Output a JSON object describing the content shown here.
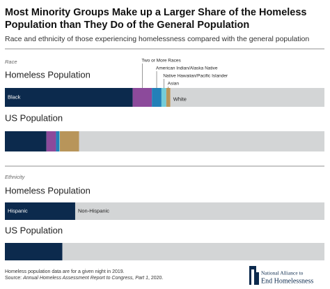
{
  "title_line1": "Most Minority Groups Make up a Larger Share of the Homeless",
  "title_line2": "Population than They Do of the General Population",
  "subtitle": "Race and ethnicity of those experiencing homelessness compared with the general population",
  "note": "Homeless population data are for a given night in 2019.",
  "source_label": "Source:",
  "source_title": "Annual Homeless Assessment Report to Congress, Part 1",
  "source_year": ", 2020.",
  "logo_line1": "National Alliance to",
  "logo_line2": "End Homelessness",
  "chart_data": [
    {
      "type": "stacked-bar",
      "section": "Race",
      "categories": [
        "Homeless Population",
        "US Population"
      ],
      "xlim": [
        0,
        100
      ],
      "series": [
        {
          "name": "Black",
          "color": "#0c2a4d",
          "values": [
            40,
            13
          ]
        },
        {
          "name": "Two or More Races",
          "color": "#8c4a9b",
          "values": [
            6,
            3
          ]
        },
        {
          "name": "American Indian/Alaska Native",
          "color": "#2380b8",
          "values": [
            3,
            1
          ]
        },
        {
          "name": "Native Hawaiian/Pacific Islander",
          "color": "#73ccd8",
          "values": [
            1.5,
            0.2
          ]
        },
        {
          "name": "Asian",
          "color": "#b8955a",
          "values": [
            1.3,
            6
          ]
        },
        {
          "name": "White",
          "color": "#d3d5d6",
          "values": [
            48.2,
            76.8
          ]
        }
      ]
    },
    {
      "type": "stacked-bar",
      "section": "Ethnicity",
      "categories": [
        "Homeless Population",
        "US Population"
      ],
      "xlim": [
        0,
        100
      ],
      "series": [
        {
          "name": "Hispanic",
          "color": "#0c2a4d",
          "values": [
            22,
            18
          ]
        },
        {
          "name": "Non-Hispanic",
          "color": "#d3d5d6",
          "values": [
            78,
            82
          ]
        }
      ]
    }
  ]
}
